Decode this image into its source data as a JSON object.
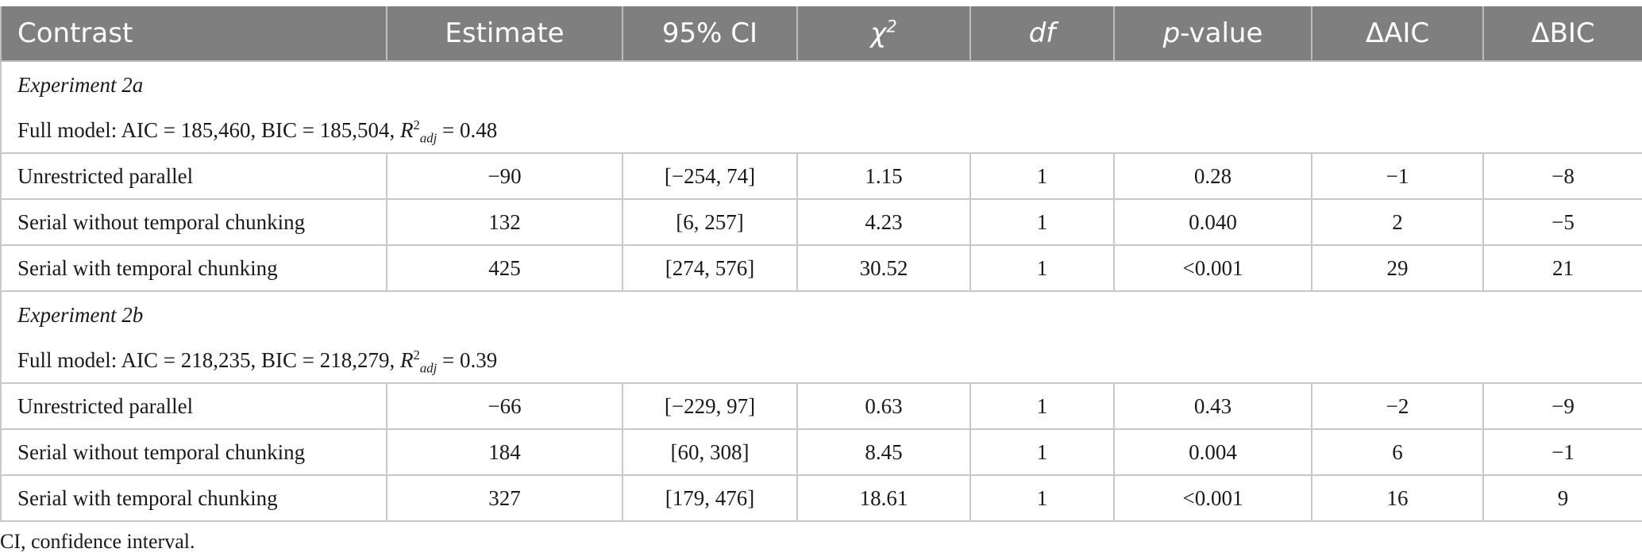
{
  "header": {
    "contrast": "Contrast",
    "estimate": "Estimate",
    "ci": "95% CI",
    "chi2_symbol": "χ",
    "chi2_sup": "2",
    "df": "df",
    "p_prefix": "p",
    "p_suffix": "-value",
    "daic": "ΔAIC",
    "dbic": "ΔBIC"
  },
  "groups": [
    {
      "title": "Experiment 2a",
      "model_prefix": "Full model: AIC = 185,460, BIC = 185,504, ",
      "r_letter": "R",
      "r_sup": "2",
      "r_sub": "adj",
      "r_value": " = 0.48",
      "rows": [
        {
          "contrast": "Unrestricted parallel",
          "estimate": "−90",
          "ci": "[−254, 74]",
          "chi2": "1.15",
          "df": "1",
          "p": "0.28",
          "daic": "−1",
          "dbic": "−8"
        },
        {
          "contrast": "Serial without temporal chunking",
          "estimate": "132",
          "ci": "[6, 257]",
          "chi2": "4.23",
          "df": "1",
          "p": "0.040",
          "daic": "2",
          "dbic": "−5"
        },
        {
          "contrast": "Serial with temporal chunking",
          "estimate": "425",
          "ci": "[274, 576]",
          "chi2": "30.52",
          "df": "1",
          "p": "<0.001",
          "daic": "29",
          "dbic": "21"
        }
      ]
    },
    {
      "title": "Experiment 2b",
      "model_prefix": "Full model: AIC = 218,235, BIC = 218,279, ",
      "r_letter": "R",
      "r_sup": "2",
      "r_sub": "adj",
      "r_value": " = 0.39",
      "rows": [
        {
          "contrast": "Unrestricted parallel",
          "estimate": "−66",
          "ci": "[−229, 97]",
          "chi2": "0.63",
          "df": "1",
          "p": "0.43",
          "daic": "−2",
          "dbic": "−9"
        },
        {
          "contrast": "Serial without temporal chunking",
          "estimate": "184",
          "ci": "[60, 308]",
          "chi2": "8.45",
          "df": "1",
          "p": "0.004",
          "daic": "6",
          "dbic": "−1"
        },
        {
          "contrast": "Serial with temporal chunking",
          "estimate": "327",
          "ci": "[179, 476]",
          "chi2": "18.61",
          "df": "1",
          "p": "<0.001",
          "daic": "16",
          "dbic": "9"
        }
      ]
    }
  ],
  "footnote": "CI, confidence interval."
}
